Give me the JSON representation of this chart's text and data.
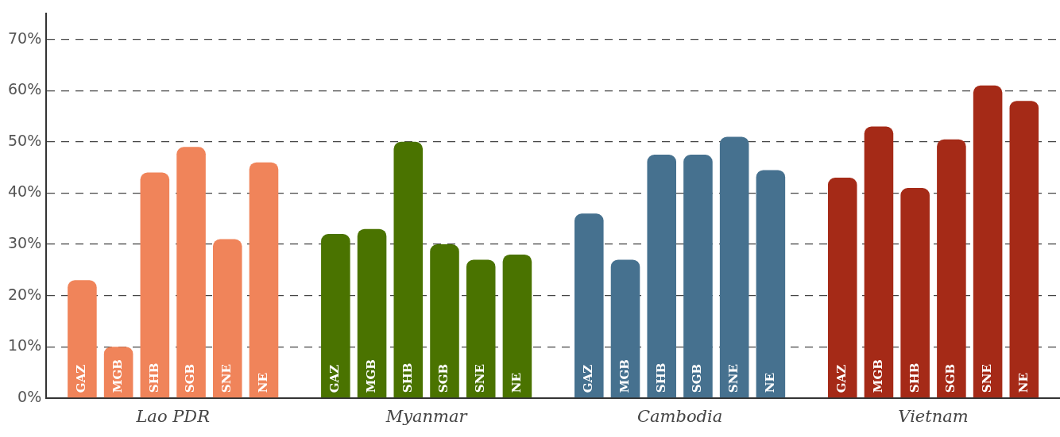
{
  "chart_data": {
    "type": "bar",
    "categories": [
      "Lao PDR",
      "Myanmar",
      "Cambodia",
      "Vietnam"
    ],
    "series": [
      {
        "name": "GAZ",
        "colors": [
          "#f0845a",
          "#4a7300",
          "#46718f",
          "#a52a17"
        ],
        "values": [
          23,
          32,
          36,
          43
        ]
      },
      {
        "name": "MGB",
        "colors": [
          "#f0845a",
          "#4a7300",
          "#46718f",
          "#a52a17"
        ],
        "values": [
          10,
          33,
          27,
          53
        ]
      },
      {
        "name": "SHB",
        "colors": [
          "#f0845a",
          "#4a7300",
          "#46718f",
          "#a52a17"
        ],
        "values": [
          44,
          50,
          47.5,
          41
        ]
      },
      {
        "name": "SGB",
        "colors": [
          "#f0845a",
          "#4a7300",
          "#46718f",
          "#a52a17"
        ],
        "values": [
          49,
          30,
          47.5,
          50.5
        ]
      },
      {
        "name": "SNE",
        "colors": [
          "#f0845a",
          "#4a7300",
          "#46718f",
          "#a52a17"
        ],
        "values": [
          31,
          27,
          51,
          61
        ]
      },
      {
        "name": "NE",
        "colors": [
          "#f0845a",
          "#4a7300",
          "#46718f",
          "#a52a17"
        ],
        "values": [
          46,
          28,
          44.5,
          58
        ]
      }
    ],
    "ylim": [
      0,
      75
    ],
    "yticks": [
      {
        "value": 0,
        "label": "0%"
      },
      {
        "value": 10,
        "label": "10%"
      },
      {
        "value": 20,
        "label": "20%"
      },
      {
        "value": 30,
        "label": "30%"
      },
      {
        "value": 40,
        "label": "40%"
      },
      {
        "value": 50,
        "label": "50%"
      },
      {
        "value": 60,
        "label": "60%"
      },
      {
        "value": 70,
        "label": "70%"
      }
    ],
    "grid": "y",
    "legend": false
  }
}
